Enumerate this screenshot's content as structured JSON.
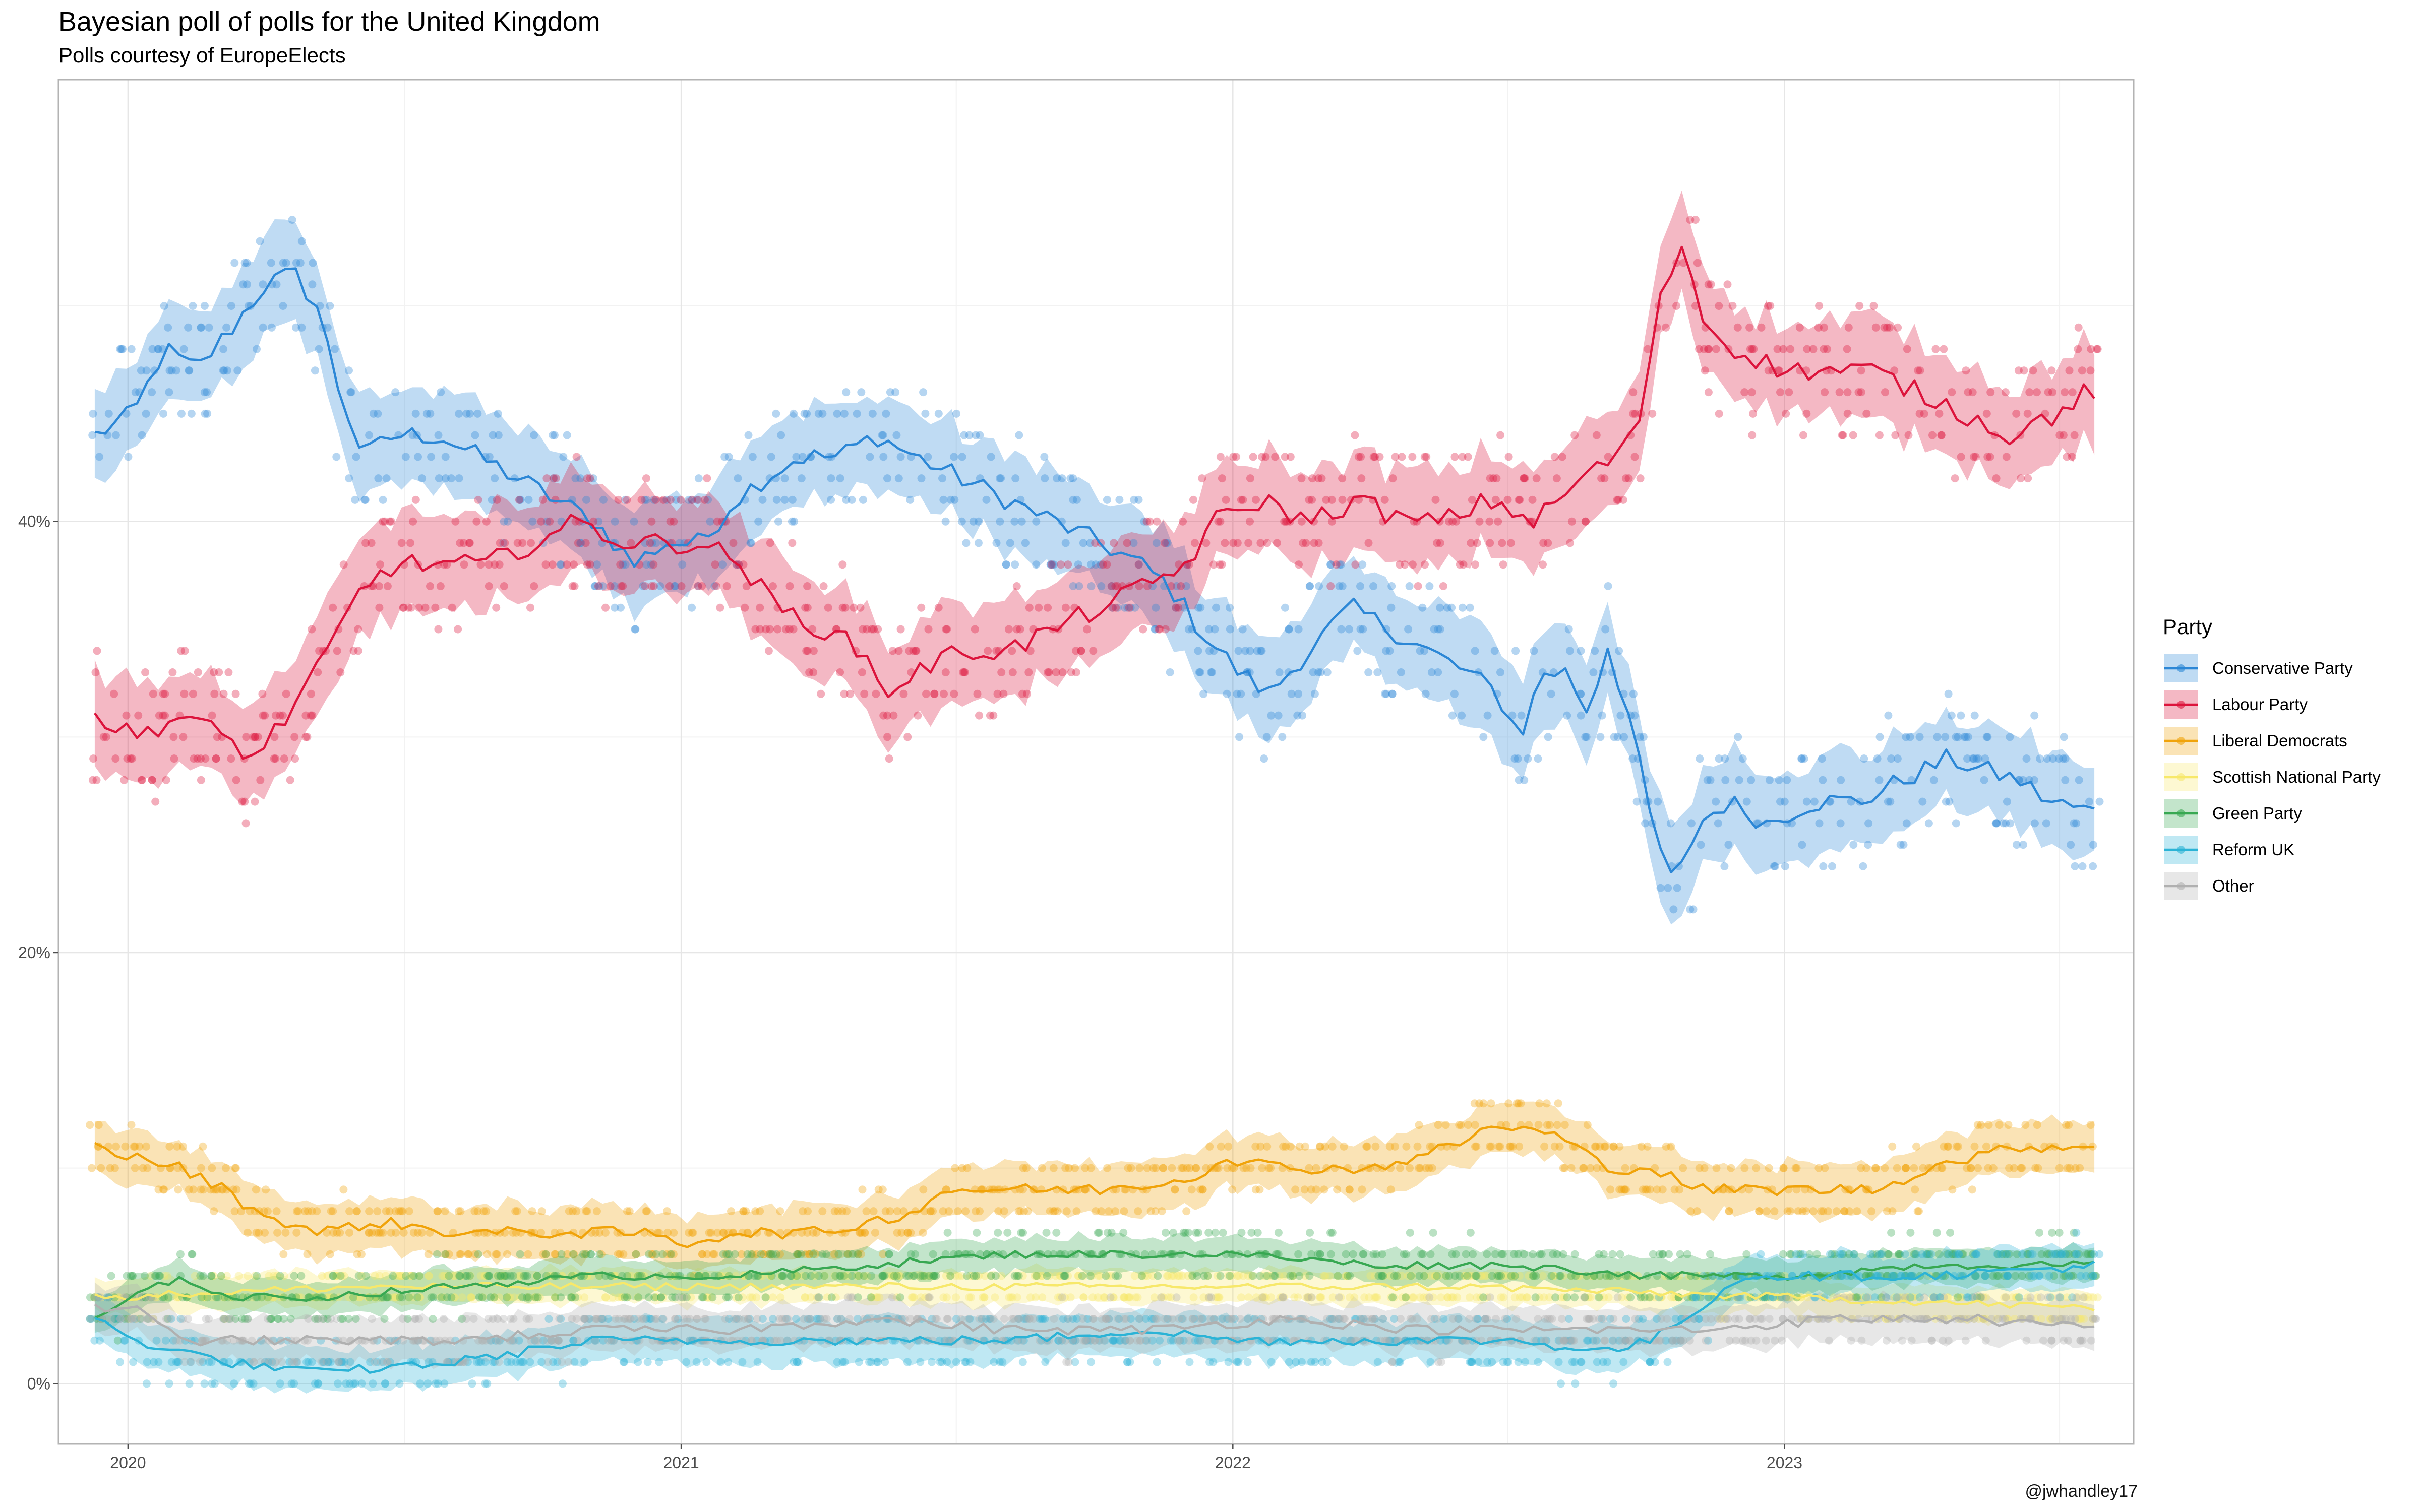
{
  "chart_data": {
    "type": "line",
    "title": "Bayesian poll of polls for the United Kingdom",
    "subtitle": "Polls courtesy of EuropeElects",
    "credit": "@jwhandley17",
    "legend_title": "Party",
    "legend_position": "right",
    "grid": true,
    "xlim": [
      "2019-11-16",
      "2023-08-20"
    ],
    "ylim": [
      -0.028,
      0.605
    ],
    "x_ticks": [
      {
        "value": "2020-01-01",
        "label": "2020"
      },
      {
        "value": "2021-01-01",
        "label": "2021"
      },
      {
        "value": "2022-01-01",
        "label": "2022"
      },
      {
        "value": "2023-01-01",
        "label": "2023"
      }
    ],
    "y_ticks": [
      {
        "value": 0,
        "label": "0%"
      },
      {
        "value": 0.2,
        "label": "20%"
      },
      {
        "value": 0.4,
        "label": "40%"
      }
    ],
    "series": [
      {
        "name": "Conservative Party",
        "color": "#2c87d6",
        "band": 0.022,
        "spread": 0.03,
        "points": [
          [
            "2019-12-10",
            0.44
          ],
          [
            "2020-01-05",
            0.45
          ],
          [
            "2020-01-25",
            0.48
          ],
          [
            "2020-02-15",
            0.47
          ],
          [
            "2020-03-10",
            0.49
          ],
          [
            "2020-04-01",
            0.51
          ],
          [
            "2020-04-20",
            0.515
          ],
          [
            "2020-05-05",
            0.5
          ],
          [
            "2020-05-20",
            0.46
          ],
          [
            "2020-06-05",
            0.43
          ],
          [
            "2020-06-25",
            0.44
          ],
          [
            "2020-07-25",
            0.44
          ],
          [
            "2020-08-20",
            0.43
          ],
          [
            "2020-09-15",
            0.42
          ],
          [
            "2020-10-10",
            0.41
          ],
          [
            "2020-11-05",
            0.4
          ],
          [
            "2020-12-01",
            0.38
          ],
          [
            "2020-12-20",
            0.39
          ],
          [
            "2021-01-15",
            0.39
          ],
          [
            "2021-02-05",
            0.41
          ],
          [
            "2021-02-25",
            0.42
          ],
          [
            "2021-03-20",
            0.43
          ],
          [
            "2021-04-15",
            0.43
          ],
          [
            "2021-05-10",
            0.44
          ],
          [
            "2021-06-05",
            0.43
          ],
          [
            "2021-07-05",
            0.42
          ],
          [
            "2021-08-05",
            0.41
          ],
          [
            "2021-09-05",
            0.4
          ],
          [
            "2021-10-05",
            0.39
          ],
          [
            "2021-11-01",
            0.38
          ],
          [
            "2021-11-20",
            0.37
          ],
          [
            "2021-12-10",
            0.35
          ],
          [
            "2022-01-05",
            0.33
          ],
          [
            "2022-01-25",
            0.32
          ],
          [
            "2022-02-20",
            0.34
          ],
          [
            "2022-03-20",
            0.36
          ],
          [
            "2022-04-15",
            0.35
          ],
          [
            "2022-05-10",
            0.34
          ],
          [
            "2022-06-05",
            0.33
          ],
          [
            "2022-06-25",
            0.32
          ],
          [
            "2022-07-10",
            0.3
          ],
          [
            "2022-07-25",
            0.33
          ],
          [
            "2022-08-10",
            0.33
          ],
          [
            "2022-08-25",
            0.31
          ],
          [
            "2022-09-05",
            0.345
          ],
          [
            "2022-09-20",
            0.31
          ],
          [
            "2022-10-05",
            0.26
          ],
          [
            "2022-10-20",
            0.23
          ],
          [
            "2022-11-05",
            0.26
          ],
          [
            "2022-11-25",
            0.27
          ],
          [
            "2022-12-20",
            0.26
          ],
          [
            "2023-01-20",
            0.27
          ],
          [
            "2023-02-20",
            0.27
          ],
          [
            "2023-03-20",
            0.28
          ],
          [
            "2023-04-20",
            0.29
          ],
          [
            "2023-05-10",
            0.285
          ],
          [
            "2023-06-05",
            0.28
          ],
          [
            "2023-06-25",
            0.27
          ],
          [
            "2023-07-25",
            0.265
          ]
        ]
      },
      {
        "name": "Labour Party",
        "color": "#dc143c",
        "band": 0.022,
        "spread": 0.03,
        "points": [
          [
            "2019-12-10",
            0.31
          ],
          [
            "2020-01-05",
            0.3
          ],
          [
            "2020-02-05",
            0.31
          ],
          [
            "2020-03-05",
            0.3
          ],
          [
            "2020-03-25",
            0.29
          ],
          [
            "2020-04-15",
            0.31
          ],
          [
            "2020-05-05",
            0.33
          ],
          [
            "2020-05-20",
            0.35
          ],
          [
            "2020-06-05",
            0.37
          ],
          [
            "2020-06-25",
            0.38
          ],
          [
            "2020-07-25",
            0.38
          ],
          [
            "2020-08-25",
            0.38
          ],
          [
            "2020-09-25",
            0.39
          ],
          [
            "2020-10-25",
            0.4
          ],
          [
            "2020-11-25",
            0.39
          ],
          [
            "2020-12-20",
            0.39
          ],
          [
            "2021-01-15",
            0.39
          ],
          [
            "2021-02-10",
            0.38
          ],
          [
            "2021-03-05",
            0.36
          ],
          [
            "2021-04-05",
            0.35
          ],
          [
            "2021-05-01",
            0.34
          ],
          [
            "2021-05-15",
            0.32
          ],
          [
            "2021-06-05",
            0.33
          ],
          [
            "2021-07-05",
            0.34
          ],
          [
            "2021-08-05",
            0.34
          ],
          [
            "2021-09-05",
            0.35
          ],
          [
            "2021-10-05",
            0.36
          ],
          [
            "2021-11-05",
            0.37
          ],
          [
            "2021-12-01",
            0.38
          ],
          [
            "2021-12-20",
            0.4
          ],
          [
            "2022-01-20",
            0.41
          ],
          [
            "2022-02-20",
            0.4
          ],
          [
            "2022-03-25",
            0.41
          ],
          [
            "2022-04-25",
            0.4
          ],
          [
            "2022-05-20",
            0.4
          ],
          [
            "2022-06-20",
            0.41
          ],
          [
            "2022-07-20",
            0.4
          ],
          [
            "2022-08-20",
            0.42
          ],
          [
            "2022-09-10",
            0.43
          ],
          [
            "2022-09-25",
            0.44
          ],
          [
            "2022-10-10",
            0.5
          ],
          [
            "2022-10-25",
            0.53
          ],
          [
            "2022-11-10",
            0.49
          ],
          [
            "2022-11-30",
            0.48
          ],
          [
            "2022-12-30",
            0.47
          ],
          [
            "2023-01-30",
            0.47
          ],
          [
            "2023-02-28",
            0.47
          ],
          [
            "2023-03-30",
            0.46
          ],
          [
            "2023-04-30",
            0.45
          ],
          [
            "2023-05-30",
            0.44
          ],
          [
            "2023-06-30",
            0.45
          ],
          [
            "2023-07-20",
            0.46
          ],
          [
            "2023-07-30",
            0.455
          ]
        ]
      },
      {
        "name": "Liberal Democrats",
        "color": "#f0a30a",
        "band": 0.012,
        "spread": 0.012,
        "points": [
          [
            "2019-12-10",
            0.11
          ],
          [
            "2020-01-05",
            0.105
          ],
          [
            "2020-02-05",
            0.1
          ],
          [
            "2020-03-05",
            0.09
          ],
          [
            "2020-03-25",
            0.08
          ],
          [
            "2020-05-05",
            0.07
          ],
          [
            "2020-06-15",
            0.075
          ],
          [
            "2020-08-05",
            0.07
          ],
          [
            "2020-10-05",
            0.07
          ],
          [
            "2020-12-05",
            0.07
          ],
          [
            "2021-01-05",
            0.065
          ],
          [
            "2021-02-05",
            0.07
          ],
          [
            "2021-04-05",
            0.07
          ],
          [
            "2021-06-05",
            0.08
          ],
          [
            "2021-06-25",
            0.09
          ],
          [
            "2021-08-05",
            0.09
          ],
          [
            "2021-10-05",
            0.09
          ],
          [
            "2021-12-05",
            0.095
          ],
          [
            "2021-12-25",
            0.105
          ],
          [
            "2022-02-05",
            0.1
          ],
          [
            "2022-04-05",
            0.1
          ],
          [
            "2022-05-25",
            0.11
          ],
          [
            "2022-06-25",
            0.12
          ],
          [
            "2022-08-05",
            0.115
          ],
          [
            "2022-09-05",
            0.1
          ],
          [
            "2022-10-05",
            0.1
          ],
          [
            "2022-11-05",
            0.09
          ],
          [
            "2022-12-05",
            0.09
          ],
          [
            "2023-01-05",
            0.09
          ],
          [
            "2023-03-05",
            0.09
          ],
          [
            "2023-04-05",
            0.1
          ],
          [
            "2023-05-05",
            0.105
          ],
          [
            "2023-06-05",
            0.11
          ],
          [
            "2023-07-30",
            0.11
          ]
        ]
      },
      {
        "name": "Scottish National Party",
        "color": "#f7e86a",
        "band": 0.008,
        "spread": 0.008,
        "points": [
          [
            "2019-12-10",
            0.04
          ],
          [
            "2020-06-05",
            0.045
          ],
          [
            "2021-01-05",
            0.045
          ],
          [
            "2021-06-05",
            0.045
          ],
          [
            "2022-01-05",
            0.045
          ],
          [
            "2022-06-05",
            0.045
          ],
          [
            "2023-01-05",
            0.04
          ],
          [
            "2023-07-30",
            0.035
          ]
        ]
      },
      {
        "name": "Green Party",
        "color": "#38a852",
        "band": 0.008,
        "spread": 0.012,
        "points": [
          [
            "2019-12-10",
            0.03
          ],
          [
            "2020-01-05",
            0.04
          ],
          [
            "2020-02-05",
            0.05
          ],
          [
            "2020-03-05",
            0.04
          ],
          [
            "2020-05-05",
            0.04
          ],
          [
            "2020-08-05",
            0.045
          ],
          [
            "2020-11-05",
            0.05
          ],
          [
            "2021-02-05",
            0.05
          ],
          [
            "2021-05-05",
            0.055
          ],
          [
            "2021-08-05",
            0.06
          ],
          [
            "2021-11-05",
            0.06
          ],
          [
            "2022-01-05",
            0.06
          ],
          [
            "2022-04-05",
            0.055
          ],
          [
            "2022-07-05",
            0.055
          ],
          [
            "2022-10-05",
            0.05
          ],
          [
            "2023-01-05",
            0.05
          ],
          [
            "2023-04-05",
            0.055
          ],
          [
            "2023-07-30",
            0.055
          ]
        ]
      },
      {
        "name": "Reform UK",
        "color": "#2bb3d6",
        "band": 0.01,
        "spread": 0.012,
        "points": [
          [
            "2019-12-10",
            0.03
          ],
          [
            "2020-01-05",
            0.02
          ],
          [
            "2020-02-05",
            0.015
          ],
          [
            "2020-03-05",
            0.01
          ],
          [
            "2020-05-05",
            0.005
          ],
          [
            "2020-08-05",
            0.01
          ],
          [
            "2020-11-05",
            0.02
          ],
          [
            "2021-02-05",
            0.02
          ],
          [
            "2021-05-05",
            0.02
          ],
          [
            "2021-08-05",
            0.02
          ],
          [
            "2021-11-05",
            0.025
          ],
          [
            "2022-01-05",
            0.02
          ],
          [
            "2022-04-05",
            0.02
          ],
          [
            "2022-07-05",
            0.02
          ],
          [
            "2022-09-05",
            0.015
          ],
          [
            "2022-10-05",
            0.02
          ],
          [
            "2022-11-05",
            0.035
          ],
          [
            "2022-12-05",
            0.05
          ],
          [
            "2023-01-05",
            0.05
          ],
          [
            "2023-04-05",
            0.05
          ],
          [
            "2023-07-30",
            0.055
          ]
        ]
      },
      {
        "name": "Other",
        "color": "#b0b0b0",
        "band": 0.01,
        "spread": 0.01,
        "points": [
          [
            "2019-12-10",
            0.035
          ],
          [
            "2020-01-05",
            0.035
          ],
          [
            "2020-02-05",
            0.02
          ],
          [
            "2020-05-05",
            0.02
          ],
          [
            "2020-08-05",
            0.02
          ],
          [
            "2020-11-05",
            0.025
          ],
          [
            "2021-02-05",
            0.025
          ],
          [
            "2021-05-05",
            0.03
          ],
          [
            "2021-08-05",
            0.025
          ],
          [
            "2021-11-05",
            0.025
          ],
          [
            "2022-02-05",
            0.03
          ],
          [
            "2022-05-05",
            0.025
          ],
          [
            "2022-08-05",
            0.025
          ],
          [
            "2022-11-05",
            0.025
          ],
          [
            "2023-02-05",
            0.03
          ],
          [
            "2023-05-05",
            0.03
          ],
          [
            "2023-07-30",
            0.025
          ]
        ]
      }
    ]
  }
}
